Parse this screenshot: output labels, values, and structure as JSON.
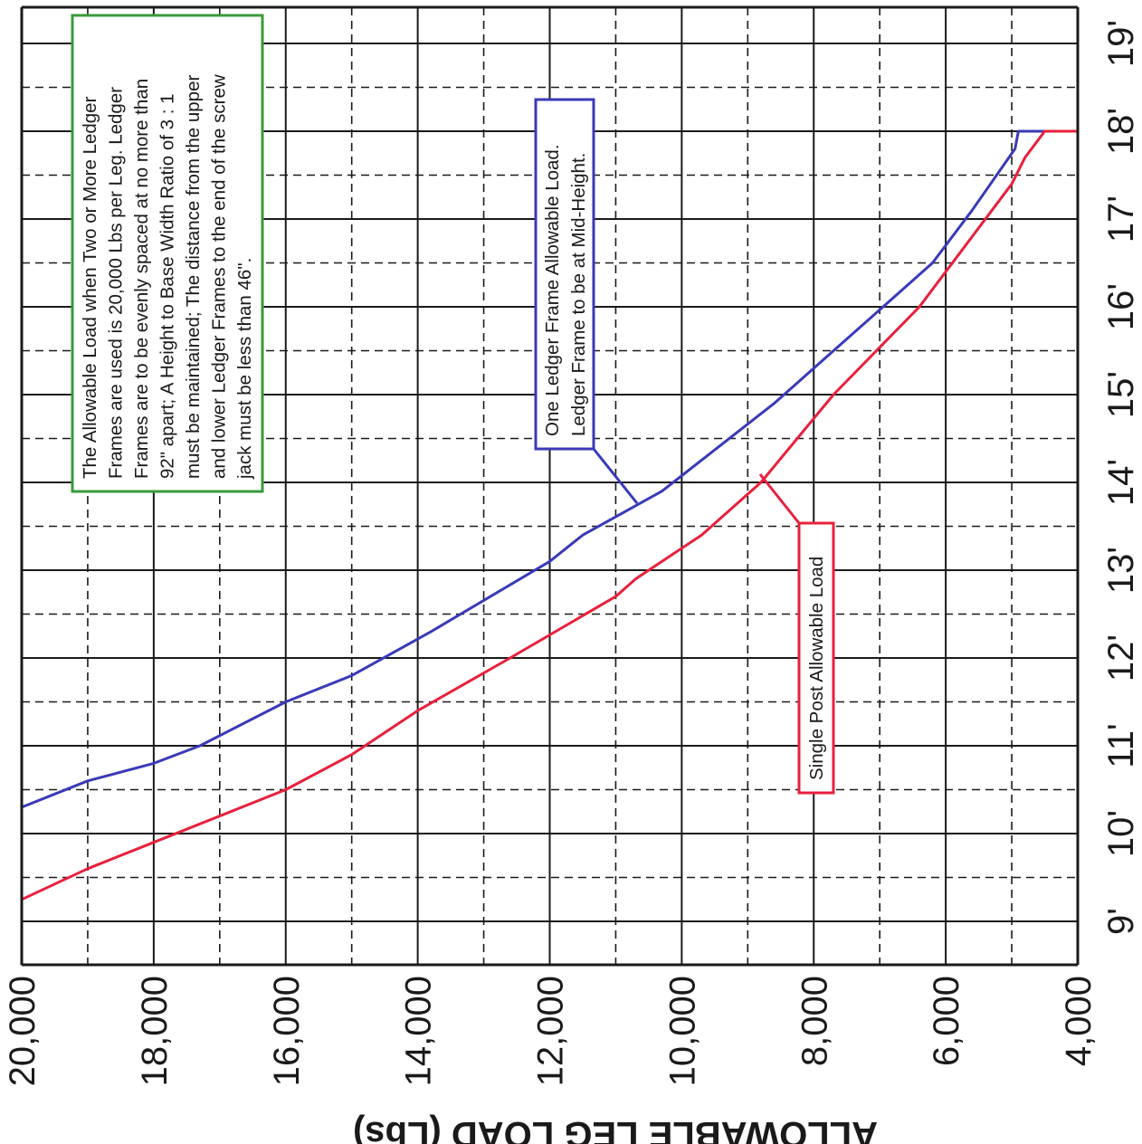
{
  "chart_data": {
    "type": "line",
    "xlabel": "ALLOWABLE LEG LOAD (Lbs)",
    "ylabel": "",
    "x_axis": {
      "range": [
        4000,
        20000
      ],
      "major_ticks": [
        20000,
        18000,
        16000,
        14000,
        12000,
        10000,
        8000,
        6000,
        4000
      ],
      "tick_labels": [
        "20,000",
        "18,000",
        "16,000",
        "14,000",
        "12,000",
        "10,000",
        "8,000",
        "6,000",
        "4,000"
      ]
    },
    "y_axis": {
      "unit": "ft",
      "range": [
        8.5,
        19.5
      ],
      "major_ticks": [
        9,
        10,
        11,
        12,
        13,
        14,
        15,
        16,
        17,
        18,
        19
      ],
      "tick_labels": [
        "9'",
        "10'",
        "11'",
        "12'",
        "13'",
        "14'",
        "15'",
        "16'",
        "17'",
        "18'",
        "19'"
      ]
    },
    "grid": "major solid, minor dashed",
    "series": [
      {
        "label_ref": "blue",
        "color": "#3a3ab8",
        "points": [
          [
            20000,
            9.5
          ],
          [
            20000,
            10.3
          ],
          [
            19000,
            10.6
          ],
          [
            18000,
            10.8
          ],
          [
            17300,
            11.0
          ],
          [
            16000,
            11.5
          ],
          [
            15000,
            11.8
          ],
          [
            13800,
            12.3
          ],
          [
            12000,
            13.1
          ],
          [
            11500,
            13.4
          ],
          [
            10300,
            13.9
          ],
          [
            8600,
            14.9
          ],
          [
            7100,
            15.9
          ],
          [
            6200,
            16.5
          ],
          [
            5600,
            17.1
          ],
          [
            4950,
            17.8
          ],
          [
            4900,
            18.0
          ],
          [
            4500,
            18.0
          ]
        ]
      },
      {
        "label_ref": "red",
        "color": "#e8203c",
        "points": [
          [
            20000,
            8.5
          ],
          [
            20000,
            9.25
          ],
          [
            19000,
            9.6
          ],
          [
            18000,
            9.9
          ],
          [
            17000,
            10.2
          ],
          [
            16000,
            10.5
          ],
          [
            15000,
            10.9
          ],
          [
            14000,
            11.4
          ],
          [
            12600,
            12.0
          ],
          [
            11000,
            12.7
          ],
          [
            10700,
            12.9
          ],
          [
            9700,
            13.4
          ],
          [
            8800,
            14.0
          ],
          [
            7700,
            15.0
          ],
          [
            6400,
            16.0
          ],
          [
            5000,
            17.4
          ],
          [
            4800,
            17.7
          ],
          [
            4500,
            18.0
          ],
          [
            4000,
            18.0
          ]
        ]
      }
    ],
    "annotations": {
      "general_note": {
        "lines": [
          "The Allowable Load when Two or More Ledger",
          "Frames are used is 20,000 Lbs per Leg.  Ledger",
          "Frames are to be evenly spaced at no more than",
          "92\" apart;  A Height to Base Width Ratio of 3 : 1",
          "must be maintained;  The distance from the upper",
          "and lower Ledger Frames to the end of the screw",
          "jack must be less than 46\"."
        ],
        "border_color": "#3a9a3a"
      },
      "blue_label": {
        "lines": [
          "One Ledger Frame Allowable Load.",
          "Ledger Frame to be at Mid-Height."
        ],
        "border_color": "#3a3ab8"
      },
      "red_label": {
        "lines": [
          "Single Post Allowable Load"
        ],
        "border_color": "#e8203c"
      }
    }
  }
}
